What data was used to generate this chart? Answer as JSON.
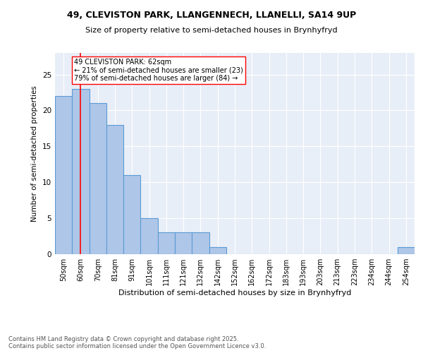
{
  "title_line1": "49, CLEVISTON PARK, LLANGENNECH, LLANELLI, SA14 9UP",
  "title_line2": "Size of property relative to semi-detached houses in Brynhyfryd",
  "xlabel": "Distribution of semi-detached houses by size in Brynhyfryd",
  "ylabel": "Number of semi-detached properties",
  "categories": [
    "50sqm",
    "60sqm",
    "70sqm",
    "81sqm",
    "91sqm",
    "101sqm",
    "111sqm",
    "121sqm",
    "132sqm",
    "142sqm",
    "152sqm",
    "162sqm",
    "172sqm",
    "183sqm",
    "193sqm",
    "203sqm",
    "213sqm",
    "223sqm",
    "234sqm",
    "244sqm",
    "254sqm"
  ],
  "values": [
    22,
    23,
    21,
    18,
    11,
    5,
    3,
    3,
    3,
    1,
    0,
    0,
    0,
    0,
    0,
    0,
    0,
    0,
    0,
    0,
    1
  ],
  "bar_color": "#aec6e8",
  "bar_edge_color": "#5b9bd5",
  "background_color": "#e8eef7",
  "red_line_index": 1,
  "annotation_title": "49 CLEVISTON PARK: 62sqm",
  "annotation_line2": "← 21% of semi-detached houses are smaller (23)",
  "annotation_line3": "79% of semi-detached houses are larger (84) →",
  "footer_line1": "Contains HM Land Registry data © Crown copyright and database right 2025.",
  "footer_line2": "Contains public sector information licensed under the Open Government Licence v3.0.",
  "ylim": [
    0,
    28
  ],
  "yticks": [
    0,
    5,
    10,
    15,
    20,
    25
  ]
}
